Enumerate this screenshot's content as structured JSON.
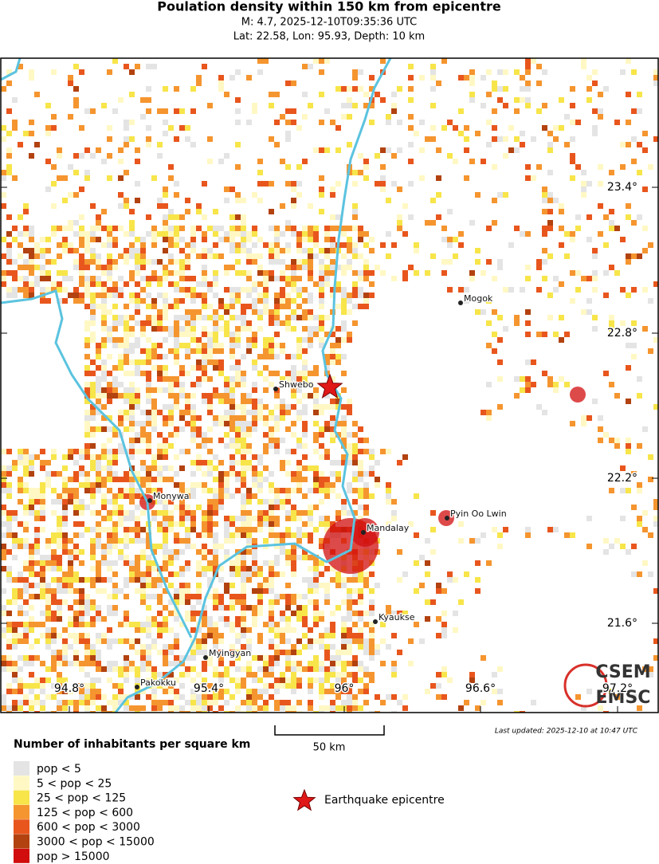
{
  "header": {
    "title": "Poulation density within 150 km from epicentre",
    "subtitle": "M: 4.7,  2025-12-10T09:35:36 UTC",
    "location": "Lat: 22.58, Lon: 95.93, Depth: 10 km"
  },
  "map": {
    "lat_labels": [
      "23.4°",
      "22.8°",
      "22.2°",
      "21.6°"
    ],
    "lon_labels": [
      "94.8°",
      "95.4°",
      "96°",
      "96.6°",
      "97.2°"
    ],
    "cities": [
      {
        "name": "Mogok"
      },
      {
        "name": "Shwebo"
      },
      {
        "name": "Monywa"
      },
      {
        "name": "Mandalay"
      },
      {
        "name": "Pyin Oo Lwin"
      },
      {
        "name": "Kyaukse"
      },
      {
        "name": "Myingyan"
      },
      {
        "name": "Pakokku"
      }
    ]
  },
  "scale_bar": "50 km",
  "last_updated": "Last updated: 2025-12-10 at 10:47 UTC",
  "logo": {
    "top": "CSEM",
    "bottom": "EMSC"
  },
  "legend": {
    "title": "Number of inhabitants per square km",
    "items": [
      {
        "label": "pop < 5",
        "color": "#e4e4e4"
      },
      {
        "label": "5 < pop < 25",
        "color": "#fff8c4"
      },
      {
        "label": "25 < pop < 125",
        "color": "#f7e54a"
      },
      {
        "label": "125 < pop < 600",
        "color": "#f5952f"
      },
      {
        "label": "600 < pop < 3000",
        "color": "#e8561d"
      },
      {
        "label": "3000 < pop < 15000",
        "color": "#b2420f"
      },
      {
        "label": "pop > 15000",
        "color": "#d10d0d"
      }
    ],
    "epicentre": "Earthquake epicentre"
  }
}
